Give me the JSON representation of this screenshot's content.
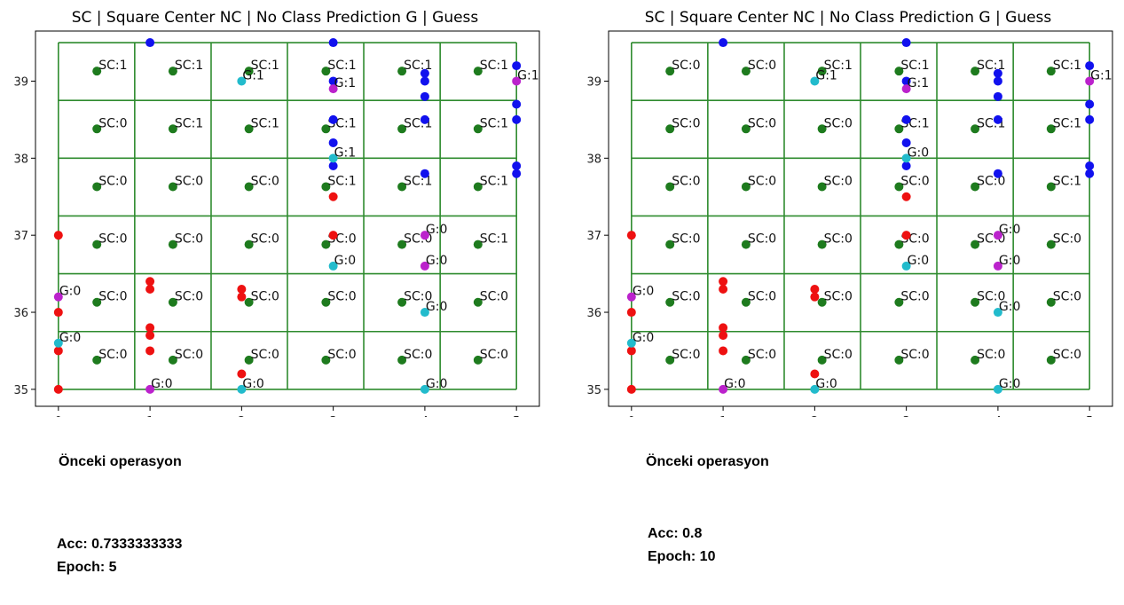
{
  "chart_data": [
    {
      "type": "scatter",
      "title": "SC | Square Center   NC | No Class Prediction    G | Guess",
      "xlim": [
        -0.25,
        5.25
      ],
      "ylim": [
        34.78,
        39.65
      ],
      "xticks": [
        0,
        1,
        2,
        3,
        4,
        5
      ],
      "yticks": [
        35,
        36,
        37,
        38,
        39
      ],
      "grid": {
        "x_lines": [
          0,
          0.833,
          1.667,
          2.5,
          3.333,
          4.167,
          5
        ],
        "y_lines": [
          35,
          35.75,
          36.5,
          37.25,
          38.0,
          38.75,
          39.5
        ]
      },
      "colors": {
        "grid": "#2e8b2e",
        "square_center": "#1e7b1e",
        "class_a": "#ee1111",
        "class_b": "#1111ee",
        "guess_correct": "#22bbcc",
        "guess_wrong": "#bb22cc"
      },
      "square_centers": [
        {
          "x": 0.42,
          "y": 39.13,
          "label": "SC:1"
        },
        {
          "x": 1.25,
          "y": 39.13,
          "label": "SC:1"
        },
        {
          "x": 2.08,
          "y": 39.13,
          "label": "SC:1"
        },
        {
          "x": 2.92,
          "y": 39.13,
          "label": "SC:1"
        },
        {
          "x": 3.75,
          "y": 39.13,
          "label": "SC:1"
        },
        {
          "x": 4.58,
          "y": 39.13,
          "label": "SC:1"
        },
        {
          "x": 0.42,
          "y": 38.38,
          "label": "SC:0"
        },
        {
          "x": 1.25,
          "y": 38.38,
          "label": "SC:1"
        },
        {
          "x": 2.08,
          "y": 38.38,
          "label": "SC:1"
        },
        {
          "x": 2.92,
          "y": 38.38,
          "label": "SC:1"
        },
        {
          "x": 3.75,
          "y": 38.38,
          "label": "SC:1"
        },
        {
          "x": 4.58,
          "y": 38.38,
          "label": "SC:1"
        },
        {
          "x": 0.42,
          "y": 37.63,
          "label": "SC:0"
        },
        {
          "x": 1.25,
          "y": 37.63,
          "label": "SC:0"
        },
        {
          "x": 2.08,
          "y": 37.63,
          "label": "SC:0"
        },
        {
          "x": 2.92,
          "y": 37.63,
          "label": "SC:1"
        },
        {
          "x": 3.75,
          "y": 37.63,
          "label": "SC:1"
        },
        {
          "x": 4.58,
          "y": 37.63,
          "label": "SC:1"
        },
        {
          "x": 0.42,
          "y": 36.88,
          "label": "SC:0"
        },
        {
          "x": 1.25,
          "y": 36.88,
          "label": "SC:0"
        },
        {
          "x": 2.08,
          "y": 36.88,
          "label": "SC:0"
        },
        {
          "x": 2.92,
          "y": 36.88,
          "label": "SC:0"
        },
        {
          "x": 3.75,
          "y": 36.88,
          "label": "SC:0"
        },
        {
          "x": 4.58,
          "y": 36.88,
          "label": "SC:1"
        },
        {
          "x": 0.42,
          "y": 36.13,
          "label": "SC:0"
        },
        {
          "x": 1.25,
          "y": 36.13,
          "label": "SC:0"
        },
        {
          "x": 2.08,
          "y": 36.13,
          "label": "SC:0"
        },
        {
          "x": 2.92,
          "y": 36.13,
          "label": "SC:0"
        },
        {
          "x": 3.75,
          "y": 36.13,
          "label": "SC:0"
        },
        {
          "x": 4.58,
          "y": 36.13,
          "label": "SC:0"
        },
        {
          "x": 0.42,
          "y": 35.38,
          "label": "SC:0"
        },
        {
          "x": 1.25,
          "y": 35.38,
          "label": "SC:0"
        },
        {
          "x": 2.08,
          "y": 35.38,
          "label": "SC:0"
        },
        {
          "x": 2.92,
          "y": 35.38,
          "label": "SC:0"
        },
        {
          "x": 3.75,
          "y": 35.38,
          "label": "SC:0"
        },
        {
          "x": 4.58,
          "y": 35.38,
          "label": "SC:0"
        }
      ],
      "class_a_points": [
        [
          0,
          37.0
        ],
        [
          0,
          36.0
        ],
        [
          0,
          35.5
        ],
        [
          0,
          35.0
        ],
        [
          1,
          36.4
        ],
        [
          1,
          36.3
        ],
        [
          1,
          35.8
        ],
        [
          1,
          35.7
        ],
        [
          1,
          35.5
        ],
        [
          2,
          36.3
        ],
        [
          2,
          36.2
        ],
        [
          2,
          35.2
        ],
        [
          3,
          37.5
        ],
        [
          3,
          37.0
        ]
      ],
      "class_b_points": [
        [
          1,
          39.5
        ],
        [
          3,
          39.5
        ],
        [
          3,
          39.0
        ],
        [
          3,
          38.5
        ],
        [
          3,
          38.2
        ],
        [
          3,
          37.9
        ],
        [
          4,
          39.1
        ],
        [
          4,
          39.0
        ],
        [
          4,
          38.8
        ],
        [
          4,
          38.5
        ],
        [
          4,
          37.8
        ],
        [
          5,
          39.2
        ],
        [
          5,
          38.7
        ],
        [
          5,
          38.5
        ],
        [
          5,
          37.9
        ],
        [
          5,
          37.8
        ]
      ],
      "guesses": [
        {
          "x": 0,
          "y": 36.2,
          "label": "G:0",
          "kind": "wrong"
        },
        {
          "x": 0,
          "y": 35.6,
          "label": "G:0",
          "kind": "correct"
        },
        {
          "x": 1,
          "y": 35.0,
          "label": "G:0",
          "kind": "wrong"
        },
        {
          "x": 2,
          "y": 39.0,
          "label": "G:1",
          "kind": "correct"
        },
        {
          "x": 2,
          "y": 35.0,
          "label": "G:0",
          "kind": "correct"
        },
        {
          "x": 3,
          "y": 38.9,
          "label": "G:1",
          "kind": "wrong"
        },
        {
          "x": 3,
          "y": 38.0,
          "label": "G:1",
          "kind": "correct"
        },
        {
          "x": 3,
          "y": 36.6,
          "label": "G:0",
          "kind": "correct"
        },
        {
          "x": 4,
          "y": 37.0,
          "label": "G:0",
          "kind": "wrong"
        },
        {
          "x": 4,
          "y": 36.6,
          "label": "G:0",
          "kind": "wrong"
        },
        {
          "x": 4,
          "y": 36.0,
          "label": "G:0",
          "kind": "correct"
        },
        {
          "x": 4,
          "y": 35.0,
          "label": "G:0",
          "kind": "correct"
        },
        {
          "x": 5,
          "y": 39.0,
          "label": "G:1",
          "kind": "wrong"
        }
      ]
    },
    {
      "type": "scatter",
      "title": "SC | Square Center   NC | No Class Prediction    G | Guess",
      "xlim": [
        -0.25,
        5.25
      ],
      "ylim": [
        34.78,
        39.65
      ],
      "xticks": [
        0,
        1,
        2,
        3,
        4,
        5
      ],
      "yticks": [
        35,
        36,
        37,
        38,
        39
      ],
      "grid": {
        "x_lines": [
          0,
          0.833,
          1.667,
          2.5,
          3.333,
          4.167,
          5
        ],
        "y_lines": [
          35,
          35.75,
          36.5,
          37.25,
          38.0,
          38.75,
          39.5
        ]
      },
      "colors": {
        "grid": "#2e8b2e",
        "square_center": "#1e7b1e",
        "class_a": "#ee1111",
        "class_b": "#1111ee",
        "guess_correct": "#22bbcc",
        "guess_wrong": "#bb22cc"
      },
      "square_centers": [
        {
          "x": 0.42,
          "y": 39.13,
          "label": "SC:0"
        },
        {
          "x": 1.25,
          "y": 39.13,
          "label": "SC:0"
        },
        {
          "x": 2.08,
          "y": 39.13,
          "label": "SC:1"
        },
        {
          "x": 2.92,
          "y": 39.13,
          "label": "SC:1"
        },
        {
          "x": 3.75,
          "y": 39.13,
          "label": "SC:1"
        },
        {
          "x": 4.58,
          "y": 39.13,
          "label": "SC:1"
        },
        {
          "x": 0.42,
          "y": 38.38,
          "label": "SC:0"
        },
        {
          "x": 1.25,
          "y": 38.38,
          "label": "SC:0"
        },
        {
          "x": 2.08,
          "y": 38.38,
          "label": "SC:0"
        },
        {
          "x": 2.92,
          "y": 38.38,
          "label": "SC:1"
        },
        {
          "x": 3.75,
          "y": 38.38,
          "label": "SC:1"
        },
        {
          "x": 4.58,
          "y": 38.38,
          "label": "SC:1"
        },
        {
          "x": 0.42,
          "y": 37.63,
          "label": "SC:0"
        },
        {
          "x": 1.25,
          "y": 37.63,
          "label": "SC:0"
        },
        {
          "x": 2.08,
          "y": 37.63,
          "label": "SC:0"
        },
        {
          "x": 2.92,
          "y": 37.63,
          "label": "SC:0"
        },
        {
          "x": 3.75,
          "y": 37.63,
          "label": "SC:0"
        },
        {
          "x": 4.58,
          "y": 37.63,
          "label": "SC:1"
        },
        {
          "x": 0.42,
          "y": 36.88,
          "label": "SC:0"
        },
        {
          "x": 1.25,
          "y": 36.88,
          "label": "SC:0"
        },
        {
          "x": 2.08,
          "y": 36.88,
          "label": "SC:0"
        },
        {
          "x": 2.92,
          "y": 36.88,
          "label": "SC:0"
        },
        {
          "x": 3.75,
          "y": 36.88,
          "label": "SC:0"
        },
        {
          "x": 4.58,
          "y": 36.88,
          "label": "SC:0"
        },
        {
          "x": 0.42,
          "y": 36.13,
          "label": "SC:0"
        },
        {
          "x": 1.25,
          "y": 36.13,
          "label": "SC:0"
        },
        {
          "x": 2.08,
          "y": 36.13,
          "label": "SC:0"
        },
        {
          "x": 2.92,
          "y": 36.13,
          "label": "SC:0"
        },
        {
          "x": 3.75,
          "y": 36.13,
          "label": "SC:0"
        },
        {
          "x": 4.58,
          "y": 36.13,
          "label": "SC:0"
        },
        {
          "x": 0.42,
          "y": 35.38,
          "label": "SC:0"
        },
        {
          "x": 1.25,
          "y": 35.38,
          "label": "SC:0"
        },
        {
          "x": 2.08,
          "y": 35.38,
          "label": "SC:0"
        },
        {
          "x": 2.92,
          "y": 35.38,
          "label": "SC:0"
        },
        {
          "x": 3.75,
          "y": 35.38,
          "label": "SC:0"
        },
        {
          "x": 4.58,
          "y": 35.38,
          "label": "SC:0"
        }
      ],
      "class_a_points": [
        [
          0,
          37.0
        ],
        [
          0,
          36.0
        ],
        [
          0,
          35.5
        ],
        [
          0,
          35.0
        ],
        [
          1,
          36.4
        ],
        [
          1,
          36.3
        ],
        [
          1,
          35.8
        ],
        [
          1,
          35.7
        ],
        [
          1,
          35.5
        ],
        [
          2,
          36.3
        ],
        [
          2,
          36.2
        ],
        [
          2,
          35.2
        ],
        [
          3,
          37.5
        ],
        [
          3,
          37.0
        ]
      ],
      "class_b_points": [
        [
          1,
          39.5
        ],
        [
          3,
          39.5
        ],
        [
          3,
          39.0
        ],
        [
          3,
          38.5
        ],
        [
          3,
          38.2
        ],
        [
          3,
          37.9
        ],
        [
          4,
          39.1
        ],
        [
          4,
          39.0
        ],
        [
          4,
          38.8
        ],
        [
          4,
          38.5
        ],
        [
          4,
          37.8
        ],
        [
          5,
          39.2
        ],
        [
          5,
          38.7
        ],
        [
          5,
          38.5
        ],
        [
          5,
          37.9
        ],
        [
          5,
          37.8
        ]
      ],
      "guesses": [
        {
          "x": 0,
          "y": 36.2,
          "label": "G:0",
          "kind": "wrong"
        },
        {
          "x": 0,
          "y": 35.6,
          "label": "G:0",
          "kind": "correct"
        },
        {
          "x": 1,
          "y": 35.0,
          "label": "G:0",
          "kind": "wrong"
        },
        {
          "x": 2,
          "y": 39.0,
          "label": "G:1",
          "kind": "correct"
        },
        {
          "x": 2,
          "y": 35.0,
          "label": "G:0",
          "kind": "correct"
        },
        {
          "x": 3,
          "y": 38.9,
          "label": "G:1",
          "kind": "wrong"
        },
        {
          "x": 3,
          "y": 38.0,
          "label": "G:0",
          "kind": "correct"
        },
        {
          "x": 3,
          "y": 36.6,
          "label": "G:0",
          "kind": "correct"
        },
        {
          "x": 4,
          "y": 37.0,
          "label": "G:0",
          "kind": "wrong"
        },
        {
          "x": 4,
          "y": 36.6,
          "label": "G:0",
          "kind": "wrong"
        },
        {
          "x": 4,
          "y": 36.0,
          "label": "G:0",
          "kind": "correct"
        },
        {
          "x": 4,
          "y": 35.0,
          "label": "G:0",
          "kind": "correct"
        },
        {
          "x": 5,
          "y": 39.0,
          "label": "G:1",
          "kind": "wrong"
        }
      ]
    }
  ],
  "panels": [
    {
      "caption": "Önceki operasyon",
      "acc": "Acc: 0.7333333333",
      "epoch": "Epoch: 5"
    },
    {
      "caption": "Önceki operasyon",
      "acc": "Acc: 0.8",
      "epoch": "Epoch: 10"
    }
  ]
}
